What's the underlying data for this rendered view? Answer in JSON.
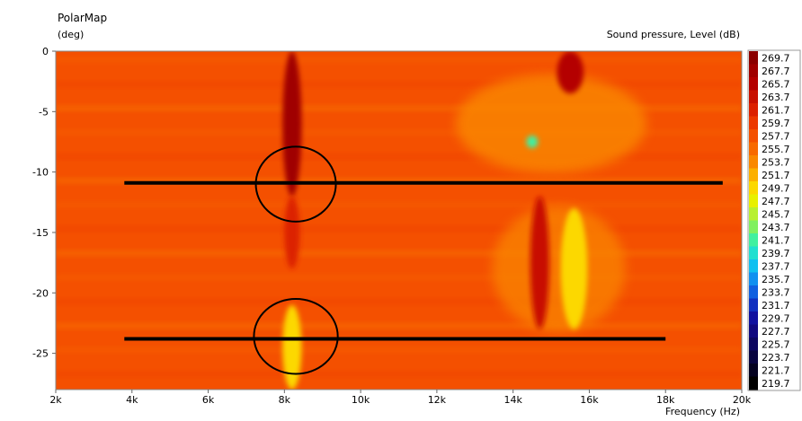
{
  "chart_data": {
    "type": "heatmap",
    "title": "PolarMap",
    "ylabel": "(deg)",
    "xlabel": "Frequency  (Hz)",
    "colorbar_label": "Sound pressure, Level  (dB)",
    "x_ticks": [
      {
        "value": 2000,
        "label": "2k"
      },
      {
        "value": 4000,
        "label": "4k"
      },
      {
        "value": 6000,
        "label": "6k"
      },
      {
        "value": 8000,
        "label": "8k"
      },
      {
        "value": 10000,
        "label": "10k"
      },
      {
        "value": 12000,
        "label": "12k"
      },
      {
        "value": 14000,
        "label": "14k"
      },
      {
        "value": 16000,
        "label": "16k"
      },
      {
        "value": 18000,
        "label": "18k"
      },
      {
        "value": 20000,
        "label": "20k"
      }
    ],
    "y_ticks": [
      {
        "value": 0,
        "label": "0"
      },
      {
        "value": -5,
        "label": "-5"
      },
      {
        "value": -10,
        "label": "-10"
      },
      {
        "value": -15,
        "label": "-15"
      },
      {
        "value": -20,
        "label": "-20"
      },
      {
        "value": -25,
        "label": "-25"
      }
    ],
    "xlim": [
      2000,
      20000
    ],
    "ylim": [
      -28,
      0
    ],
    "colorbar": {
      "labels": [
        "269.7",
        "267.7",
        "265.7",
        "263.7",
        "261.7",
        "259.7",
        "257.7",
        "255.7",
        "253.7",
        "251.7",
        "249.7",
        "247.7",
        "245.7",
        "243.7",
        "241.7",
        "239.7",
        "237.7",
        "235.7",
        "233.7",
        "231.7",
        "229.7",
        "227.7",
        "225.7",
        "223.7",
        "221.7",
        "219.7"
      ],
      "colors": [
        "#8b0000",
        "#a00000",
        "#b40000",
        "#c81000",
        "#dc2000",
        "#ec3800",
        "#f45000",
        "#f86a00",
        "#fa8800",
        "#fcb000",
        "#fcd800",
        "#e8f000",
        "#b8f030",
        "#80f060",
        "#40f0a0",
        "#20e0d0",
        "#10c0f0",
        "#1090f0",
        "#1060e0",
        "#1030c0",
        "#1010a0",
        "#100880",
        "#0c0660",
        "#080440",
        "#040220",
        "#000000"
      ]
    },
    "background_color": "#f45000",
    "features": [
      {
        "x": 8200,
        "y_from": 0,
        "y_to": -12,
        "width": 500,
        "color": "#a00000"
      },
      {
        "x": 8200,
        "y_from": -12,
        "y_to": -18,
        "width": 400,
        "color": "#dc2000"
      },
      {
        "x": 8200,
        "y_from": -21,
        "y_to": -28,
        "width": 500,
        "color": "#fcd800"
      },
      {
        "x": 15500,
        "y_from": 0,
        "y_to": -3.5,
        "width": 700,
        "color": "#b40000"
      },
      {
        "x": 14500,
        "y_from": -7.5,
        "y_to": -7.5,
        "width": 300,
        "color": "#40f0a0"
      },
      {
        "x": 14700,
        "y_from": -12,
        "y_to": -23,
        "width": 500,
        "color": "#c81000"
      },
      {
        "x": 15600,
        "y_from": -13,
        "y_to": -23,
        "width": 700,
        "color": "#fcd800"
      }
    ],
    "annotation_lines": [
      {
        "x_from": 3800,
        "x_to": 19500,
        "y": -10.9
      },
      {
        "x_from": 3800,
        "x_to": 18000,
        "y": -23.8
      }
    ],
    "annotation_circles": [
      {
        "x": 8300,
        "y": -11,
        "rx": 1050,
        "ry": 3.1
      },
      {
        "x": 8300,
        "y": -23.6,
        "rx": 1100,
        "ry": 3.1
      }
    ]
  }
}
